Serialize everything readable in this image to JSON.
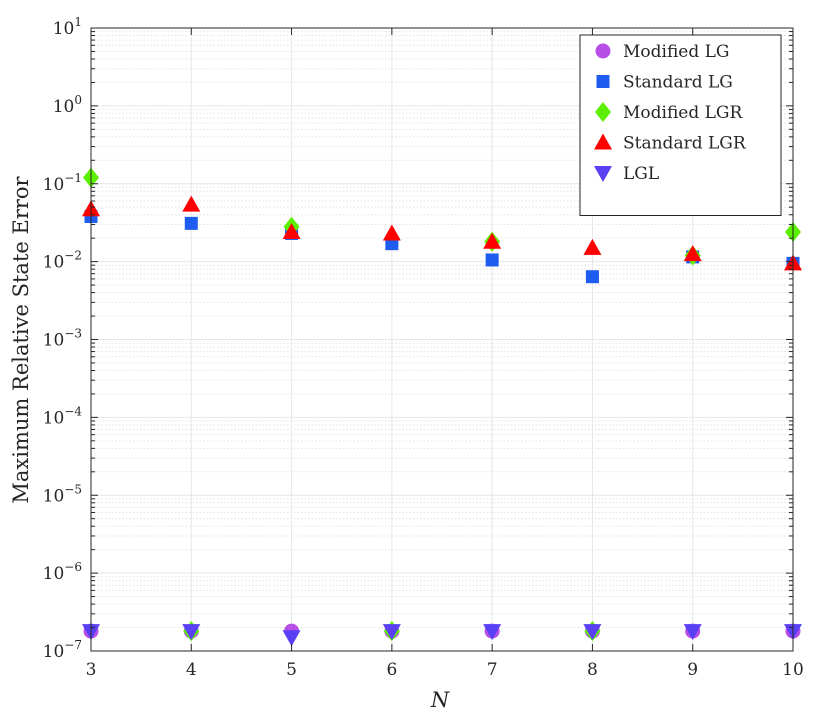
{
  "chart_data": {
    "type": "scatter",
    "xlabel": "N",
    "ylabel": "Maximum Relative State Error",
    "xlim": [
      3,
      10
    ],
    "ylim": [
      1e-07,
      10
    ],
    "yscale": "log",
    "grid": true,
    "legend_position": "top-right",
    "x_ticks": [
      "3",
      "4",
      "5",
      "6",
      "7",
      "8",
      "9",
      "10"
    ],
    "y_ticks": [
      {
        "base": "10",
        "exp": "1"
      },
      {
        "base": "10",
        "exp": "0"
      },
      {
        "base": "10",
        "exp": "−1"
      },
      {
        "base": "10",
        "exp": "−2"
      },
      {
        "base": "10",
        "exp": "−3"
      },
      {
        "base": "10",
        "exp": "−4"
      },
      {
        "base": "10",
        "exp": "−5"
      },
      {
        "base": "10",
        "exp": "−6"
      },
      {
        "base": "10",
        "exp": "−7"
      }
    ],
    "x": [
      3,
      4,
      5,
      6,
      7,
      8,
      9,
      10
    ],
    "series": [
      {
        "name": "Modified LG",
        "marker": "circle",
        "color": "#b84ee8",
        "values": [
          1.8e-07,
          1.8e-07,
          1.8e-07,
          1.8e-07,
          1.8e-07,
          1.8e-07,
          1.8e-07,
          1.8e-07
        ]
      },
      {
        "name": "Standard LG",
        "marker": "square",
        "color": "#1e5cf0",
        "values": [
          0.038,
          0.031,
          0.023,
          0.017,
          0.0105,
          0.0064,
          0.0115,
          0.0095
        ]
      },
      {
        "name": "Modified LGR",
        "marker": "diamond",
        "color": "#5cf000",
        "values": [
          0.12,
          1.8e-07,
          0.028,
          1.8e-07,
          0.018,
          1.8e-07,
          0.012,
          0.024
        ]
      },
      {
        "name": "Standard LGR",
        "marker": "triangle-up",
        "color": "#ff0000",
        "values": [
          0.047,
          0.054,
          0.024,
          0.023,
          0.018,
          0.015,
          0.0125,
          0.0095
        ]
      },
      {
        "name": "LGL",
        "marker": "triangle-down",
        "color": "#5a40f5",
        "values": [
          1.8e-07,
          1.8e-07,
          1.5e-07,
          1.8e-07,
          1.8e-07,
          1.8e-07,
          1.8e-07,
          1.8e-07
        ]
      }
    ]
  }
}
